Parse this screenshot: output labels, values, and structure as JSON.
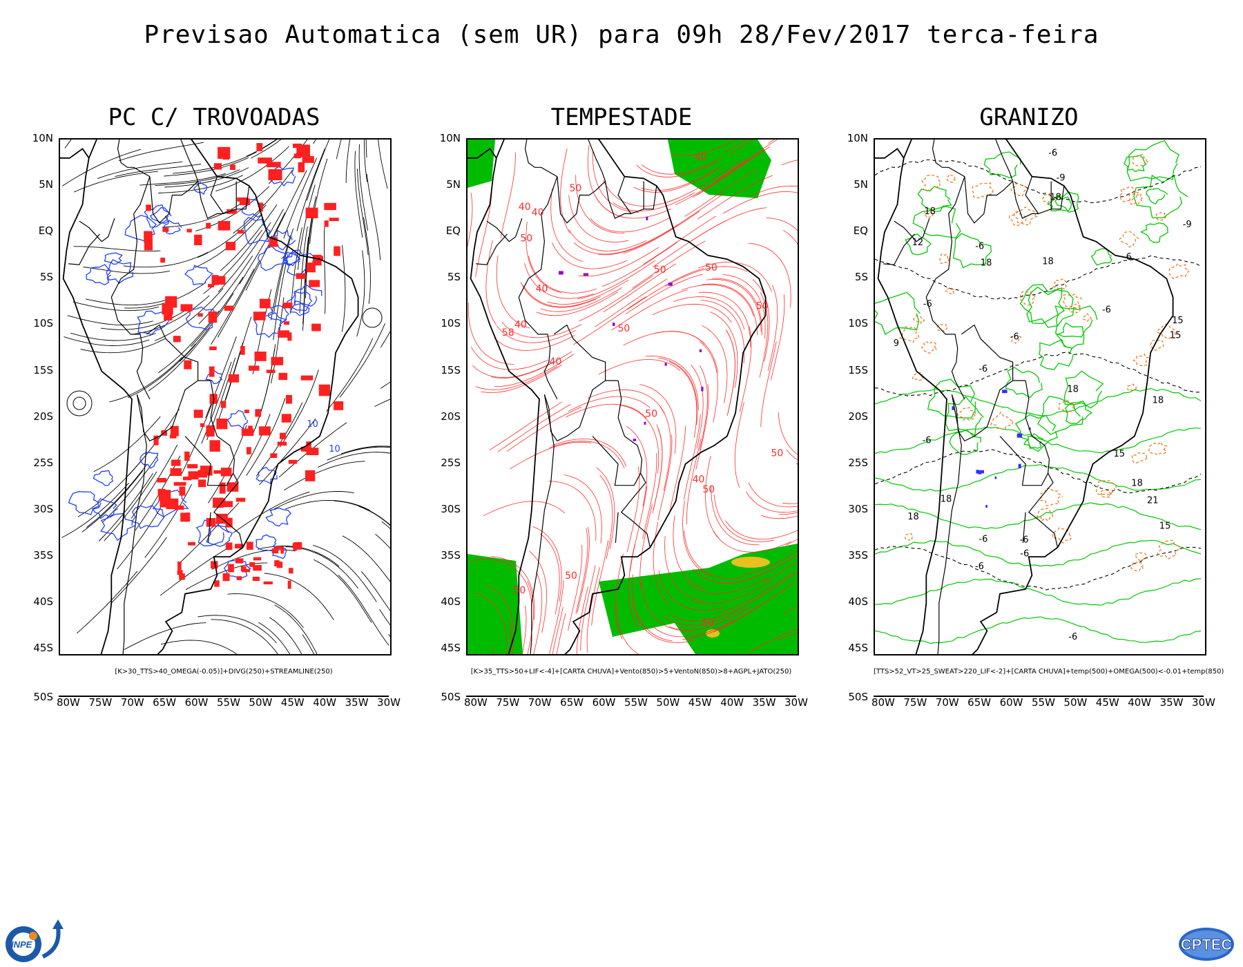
{
  "title": "Previsao Automatica (sem UR) para 09h 28/Fev/2017 terca-feira",
  "lat_labels": [
    "10N",
    "5N",
    "EQ",
    "5S",
    "10S",
    "15S",
    "20S",
    "25S",
    "30S",
    "35S",
    "40S",
    "45S",
    "50S"
  ],
  "lon_labels": [
    "80W",
    "75W",
    "70W",
    "65W",
    "60W",
    "55W",
    "50W",
    "45W",
    "40W",
    "35W",
    "30W"
  ],
  "panels": [
    {
      "title": "PC C/ TROVOADAS",
      "formula": "[K>30_TTS>40_OMEGA(-0.05)]+DIVG(250)+STREAMLINE(250)",
      "contour_labels": [
        "10",
        "10"
      ]
    },
    {
      "title": "TEMPESTADE",
      "formula": "[K>35_TTS>50+LIF<-4]+[CARTA CHUVA]+Vento(850)>5+VentoN(850)>8+AGPL+JATO(250)",
      "contour_labels": [
        "40",
        "58",
        "50",
        "40",
        "50",
        "50",
        "50",
        "50",
        "50",
        "40",
        "50",
        "40",
        "50",
        "50",
        "40",
        "50",
        "40",
        "50",
        "40",
        "50"
      ]
    },
    {
      "title": "GRANIZO",
      "formula": "[TTS>52_VT>25_SWEAT>220_LIF<-2]+[CARTA CHUVA]+temp(500)+OMEGA(500)<-0.01+temp(850)",
      "contour_labels": [
        "-6",
        "15",
        "-6",
        "18",
        "-6",
        "-6",
        "-6",
        "-6",
        "18",
        "18",
        "-6",
        "-6",
        "-6",
        "-6",
        "18",
        "18",
        "18",
        "-6",
        "21",
        "-6",
        "15",
        "18",
        "-6",
        "-9",
        "15",
        "18",
        "-9",
        "18",
        "12",
        "9",
        "15"
      ]
    }
  ],
  "colors": {
    "streamline": "#000000",
    "divergence": "#1f3fff",
    "thunder_area": "#ff2020",
    "isotach": "#ff2a2a",
    "strong_wind": "#00bb00",
    "jet_core": "#e8c020",
    "storm_marker": "#9400d3",
    "temp500": "#000000",
    "temp850": "#00c800",
    "omega": "#f07820",
    "hail_marker": "#3030ff"
  },
  "logos": {
    "left": "INPE",
    "right": "CPTEC"
  }
}
